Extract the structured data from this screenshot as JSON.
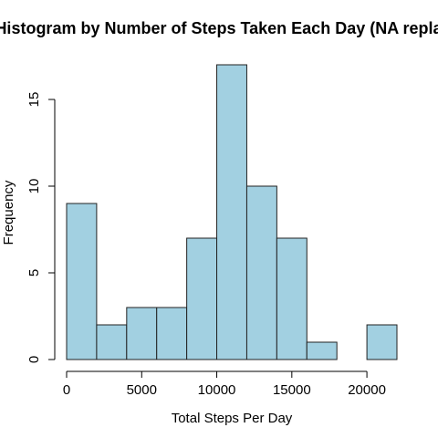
{
  "chart_data": {
    "type": "bar",
    "title": "Histogram by Number of Steps Taken Each Day (NA replaced)",
    "xlabel": "Total Steps Per Day",
    "ylabel": "Frequency",
    "bin_edges": [
      0,
      2000,
      4000,
      6000,
      8000,
      10000,
      12000,
      14000,
      16000,
      18000,
      20000,
      22000
    ],
    "values": [
      9,
      2,
      3,
      3,
      7,
      17,
      10,
      7,
      1,
      0,
      2
    ],
    "xlim": [
      0,
      22000
    ],
    "ylim": [
      0,
      17
    ],
    "x_ticks": [
      0,
      5000,
      10000,
      15000,
      20000
    ],
    "y_ticks": [
      0,
      5,
      10,
      15
    ],
    "bar_color": "#a2d0e1",
    "grid": false
  }
}
